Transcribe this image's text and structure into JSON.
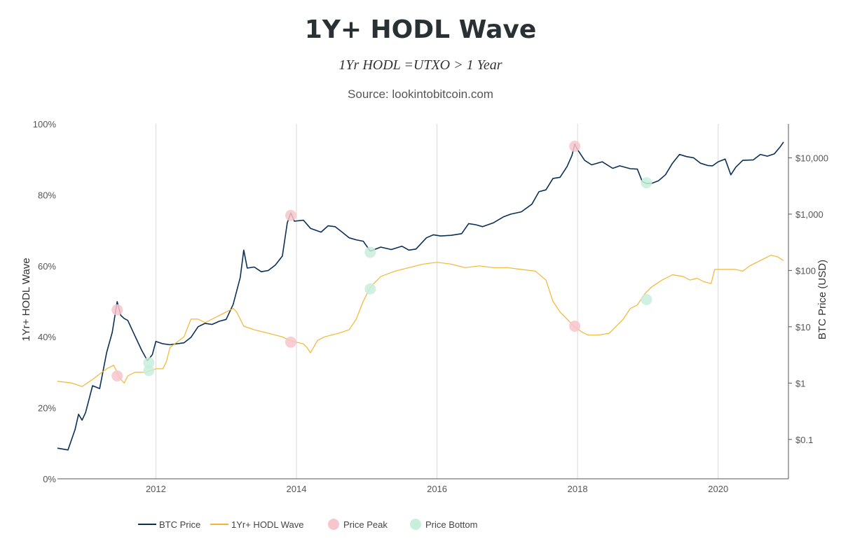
{
  "title": "1Y+ HODL Wave",
  "subtitle": "1Yr HODL =UTXO > 1 Year",
  "source": "Source: lookintobitcoin.com",
  "colors": {
    "btc_price": "#0b2f55",
    "hodl_wave": "#f2b632",
    "price_peak": "#f7c6cd",
    "price_bottom": "#c8efdc",
    "grid": "#d9d9d9",
    "axis": "#555555"
  },
  "chart_data": {
    "type": "line",
    "grid": "vertical",
    "legend_position": "bottom",
    "x_axis": {
      "range": [
        2010.6,
        2021.0
      ],
      "tick_values": [
        2012,
        2014,
        2016,
        2018,
        2020
      ],
      "tick_labels": [
        "2012",
        "2014",
        "2016",
        "2018",
        "2020"
      ]
    },
    "y_left": {
      "label": "1Yr+ HODL Wave",
      "range": [
        0,
        100
      ],
      "tick_values": [
        0,
        20,
        40,
        60,
        80,
        100
      ],
      "tick_labels": [
        "0%",
        "20%",
        "40%",
        "60%",
        "80%",
        "100%"
      ]
    },
    "y_right": {
      "label": "BTC Price (USD)",
      "scale": "log",
      "range": [
        0.02,
        40000
      ],
      "tick_values": [
        0.1,
        1,
        10,
        100,
        1000,
        10000
      ],
      "tick_labels": [
        "$0.1",
        "$1",
        "$10",
        "$100",
        "$1,000",
        "$10,000"
      ]
    },
    "series": [
      {
        "name": "BTC Price",
        "axis": "right",
        "points": [
          [
            2010.6,
            0.07
          ],
          [
            2010.75,
            0.065
          ],
          [
            2010.85,
            0.15
          ],
          [
            2010.9,
            0.28
          ],
          [
            2010.95,
            0.22
          ],
          [
            2011.0,
            0.3
          ],
          [
            2011.1,
            0.9
          ],
          [
            2011.2,
            0.8
          ],
          [
            2011.3,
            3.5
          ],
          [
            2011.38,
            8
          ],
          [
            2011.45,
            28
          ],
          [
            2011.5,
            16
          ],
          [
            2011.55,
            14
          ],
          [
            2011.6,
            13
          ],
          [
            2011.7,
            7
          ],
          [
            2011.8,
            3.8
          ],
          [
            2011.88,
            2.5
          ],
          [
            2011.95,
            3.2
          ],
          [
            2012.0,
            5.5
          ],
          [
            2012.1,
            5
          ],
          [
            2012.2,
            4.8
          ],
          [
            2012.3,
            5
          ],
          [
            2012.4,
            5.2
          ],
          [
            2012.5,
            6.5
          ],
          [
            2012.6,
            10
          ],
          [
            2012.7,
            11.5
          ],
          [
            2012.8,
            11
          ],
          [
            2012.9,
            12.5
          ],
          [
            2013.0,
            13.5
          ],
          [
            2013.1,
            25
          ],
          [
            2013.2,
            75
          ],
          [
            2013.25,
            230
          ],
          [
            2013.3,
            110
          ],
          [
            2013.4,
            115
          ],
          [
            2013.5,
            95
          ],
          [
            2013.6,
            100
          ],
          [
            2013.7,
            125
          ],
          [
            2013.8,
            180
          ],
          [
            2013.87,
            700
          ],
          [
            2013.92,
            1050
          ],
          [
            2013.97,
            750
          ],
          [
            2014.1,
            780
          ],
          [
            2014.2,
            560
          ],
          [
            2014.35,
            480
          ],
          [
            2014.45,
            620
          ],
          [
            2014.55,
            600
          ],
          [
            2014.65,
            480
          ],
          [
            2014.75,
            380
          ],
          [
            2014.85,
            350
          ],
          [
            2014.95,
            330
          ],
          [
            2015.05,
            220
          ],
          [
            2015.2,
            260
          ],
          [
            2015.35,
            235
          ],
          [
            2015.5,
            270
          ],
          [
            2015.6,
            230
          ],
          [
            2015.7,
            240
          ],
          [
            2015.85,
            380
          ],
          [
            2015.95,
            430
          ],
          [
            2016.05,
            410
          ],
          [
            2016.2,
            420
          ],
          [
            2016.35,
            450
          ],
          [
            2016.45,
            680
          ],
          [
            2016.55,
            650
          ],
          [
            2016.65,
            600
          ],
          [
            2016.8,
            700
          ],
          [
            2016.95,
            900
          ],
          [
            2017.05,
            1000
          ],
          [
            2017.2,
            1100
          ],
          [
            2017.35,
            1500
          ],
          [
            2017.45,
            2500
          ],
          [
            2017.55,
            2700
          ],
          [
            2017.65,
            4300
          ],
          [
            2017.75,
            4500
          ],
          [
            2017.85,
            7000
          ],
          [
            2017.92,
            11000
          ],
          [
            2017.96,
            17500
          ],
          [
            2018.0,
            14000
          ],
          [
            2018.1,
            9000
          ],
          [
            2018.2,
            7500
          ],
          [
            2018.35,
            8500
          ],
          [
            2018.5,
            6500
          ],
          [
            2018.6,
            7200
          ],
          [
            2018.75,
            6400
          ],
          [
            2018.85,
            6300
          ],
          [
            2018.92,
            3800
          ],
          [
            2018.98,
            3500
          ],
          [
            2019.05,
            3500
          ],
          [
            2019.15,
            3900
          ],
          [
            2019.25,
            5000
          ],
          [
            2019.35,
            8000
          ],
          [
            2019.45,
            11500
          ],
          [
            2019.55,
            10500
          ],
          [
            2019.65,
            10000
          ],
          [
            2019.75,
            8000
          ],
          [
            2019.85,
            7300
          ],
          [
            2019.92,
            7200
          ],
          [
            2020.0,
            8500
          ],
          [
            2020.1,
            9500
          ],
          [
            2020.18,
            5000
          ],
          [
            2020.25,
            6800
          ],
          [
            2020.35,
            9000
          ],
          [
            2020.5,
            9200
          ],
          [
            2020.6,
            11500
          ],
          [
            2020.7,
            10700
          ],
          [
            2020.8,
            11800
          ],
          [
            2020.88,
            15500
          ],
          [
            2020.93,
            19000
          ]
        ]
      },
      {
        "name": "1Yr+ HODL Wave",
        "axis": "left",
        "points": [
          [
            2010.6,
            27.5
          ],
          [
            2010.8,
            27
          ],
          [
            2010.95,
            26
          ],
          [
            2011.1,
            28
          ],
          [
            2011.3,
            31
          ],
          [
            2011.4,
            32
          ],
          [
            2011.45,
            30
          ],
          [
            2011.5,
            28
          ],
          [
            2011.55,
            27
          ],
          [
            2011.6,
            29
          ],
          [
            2011.7,
            30
          ],
          [
            2011.85,
            30
          ],
          [
            2012.0,
            31
          ],
          [
            2012.1,
            31
          ],
          [
            2012.15,
            33
          ],
          [
            2012.2,
            37
          ],
          [
            2012.4,
            40
          ],
          [
            2012.5,
            45
          ],
          [
            2012.6,
            45
          ],
          [
            2012.7,
            44
          ],
          [
            2012.8,
            45
          ],
          [
            2012.9,
            46
          ],
          [
            2013.0,
            47
          ],
          [
            2013.1,
            48
          ],
          [
            2013.15,
            47
          ],
          [
            2013.25,
            43
          ],
          [
            2013.4,
            42
          ],
          [
            2013.6,
            41
          ],
          [
            2013.8,
            40
          ],
          [
            2013.9,
            39
          ],
          [
            2014.0,
            38.5
          ],
          [
            2014.1,
            38
          ],
          [
            2014.15,
            37
          ],
          [
            2014.2,
            35.5
          ],
          [
            2014.3,
            39
          ],
          [
            2014.4,
            40
          ],
          [
            2014.6,
            41
          ],
          [
            2014.75,
            42
          ],
          [
            2014.85,
            45
          ],
          [
            2014.95,
            50
          ],
          [
            2015.05,
            54
          ],
          [
            2015.2,
            57
          ],
          [
            2015.4,
            58.5
          ],
          [
            2015.6,
            59.5
          ],
          [
            2015.8,
            60.5
          ],
          [
            2016.0,
            61
          ],
          [
            2016.2,
            60.5
          ],
          [
            2016.4,
            59.5
          ],
          [
            2016.6,
            60
          ],
          [
            2016.8,
            59.5
          ],
          [
            2017.0,
            59.5
          ],
          [
            2017.2,
            59
          ],
          [
            2017.4,
            58.5
          ],
          [
            2017.55,
            56
          ],
          [
            2017.65,
            50
          ],
          [
            2017.75,
            47
          ],
          [
            2017.85,
            45
          ],
          [
            2017.95,
            43
          ],
          [
            2018.05,
            41.5
          ],
          [
            2018.15,
            40.5
          ],
          [
            2018.3,
            40.5
          ],
          [
            2018.45,
            41
          ],
          [
            2018.55,
            43
          ],
          [
            2018.65,
            45
          ],
          [
            2018.75,
            48
          ],
          [
            2018.85,
            49
          ],
          [
            2018.95,
            52
          ],
          [
            2019.05,
            54
          ],
          [
            2019.2,
            56
          ],
          [
            2019.35,
            57.5
          ],
          [
            2019.5,
            57
          ],
          [
            2019.6,
            56
          ],
          [
            2019.7,
            56.5
          ],
          [
            2019.8,
            55.5
          ],
          [
            2019.9,
            55
          ],
          [
            2019.95,
            59
          ],
          [
            2020.05,
            59
          ],
          [
            2020.15,
            59
          ],
          [
            2020.25,
            59
          ],
          [
            2020.35,
            58.5
          ],
          [
            2020.45,
            60
          ],
          [
            2020.55,
            61
          ],
          [
            2020.65,
            62
          ],
          [
            2020.75,
            63
          ],
          [
            2020.85,
            62.5
          ],
          [
            2020.93,
            61.5
          ]
        ]
      }
    ],
    "markers": [
      {
        "name": "Price Peak",
        "axis": "right",
        "points": [
          [
            2011.45,
            20
          ],
          [
            2013.92,
            950
          ],
          [
            2017.96,
            16000
          ]
        ]
      },
      {
        "name": "Price Peak",
        "axis": "left",
        "points": [
          [
            2011.45,
            29
          ],
          [
            2013.92,
            38.5
          ],
          [
            2017.96,
            43
          ]
        ]
      },
      {
        "name": "Price Bottom",
        "axis": "right",
        "points": [
          [
            2011.9,
            2.3
          ],
          [
            2015.05,
            210
          ],
          [
            2018.98,
            3600
          ]
        ]
      },
      {
        "name": "Price Bottom",
        "axis": "left",
        "points": [
          [
            2011.9,
            30.5
          ],
          [
            2015.05,
            53.5
          ],
          [
            2018.98,
            50.5
          ]
        ]
      }
    ]
  },
  "legend": [
    {
      "label": "BTC Price",
      "kind": "line",
      "color_key": "btc_price"
    },
    {
      "label": "1Yr+ HODL Wave",
      "kind": "line",
      "color_key": "hodl_wave"
    },
    {
      "label": "Price Peak",
      "kind": "dot",
      "color_key": "price_peak"
    },
    {
      "label": "Price Bottom",
      "kind": "dot",
      "color_key": "price_bottom"
    }
  ]
}
